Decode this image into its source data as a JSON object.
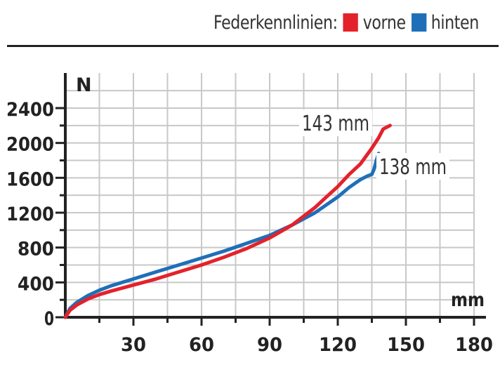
{
  "legend": {
    "title": "Federkennlinien:",
    "items": [
      {
        "label": "vorne",
        "color": "#e3222b"
      },
      {
        "label": "hinten",
        "color": "#1f6fb8"
      }
    ]
  },
  "chart_data": {
    "type": "line",
    "title": "Federkennlinien:",
    "xlabel": "mm",
    "ylabel": "N",
    "xlim": [
      0,
      180
    ],
    "ylim": [
      0,
      2400
    ],
    "xticks": [
      30,
      60,
      90,
      120,
      150,
      180
    ],
    "yticks": [
      0,
      400,
      800,
      1200,
      1600,
      2000,
      2400
    ],
    "grid": true,
    "legend_position": "top-right",
    "series": [
      {
        "name": "vorne",
        "color": "#e3222b",
        "end_label": "143 mm",
        "x": [
          0,
          2,
          5,
          10,
          15,
          20,
          30,
          40,
          50,
          60,
          70,
          80,
          90,
          100,
          110,
          115,
          120,
          125,
          130,
          135,
          138,
          140,
          143
        ],
        "y": [
          0,
          80,
          140,
          210,
          260,
          300,
          370,
          440,
          520,
          600,
          690,
          790,
          910,
          1060,
          1260,
          1380,
          1500,
          1640,
          1760,
          1940,
          2060,
          2160,
          2200
        ]
      },
      {
        "name": "hinten",
        "color": "#1f6fb8",
        "end_label": "138 mm",
        "x": [
          0,
          2,
          5,
          10,
          15,
          20,
          30,
          40,
          50,
          60,
          70,
          80,
          90,
          100,
          110,
          115,
          120,
          125,
          130,
          133,
          135,
          136,
          137,
          138
        ],
        "y": [
          0,
          100,
          170,
          250,
          310,
          360,
          440,
          520,
          600,
          680,
          760,
          850,
          940,
          1060,
          1200,
          1290,
          1380,
          1490,
          1580,
          1620,
          1640,
          1700,
          1800,
          1880
        ]
      }
    ]
  }
}
